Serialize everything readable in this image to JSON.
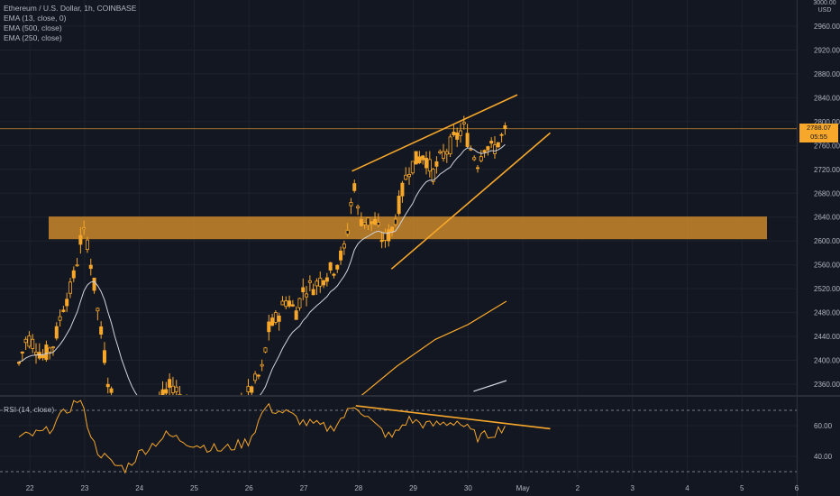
{
  "header": {
    "symbol_line": "Ethereum / U.S. Dollar, 1h, COINBASE",
    "indicators": [
      "EMA (13, close, 0)",
      "EMA (500, close)",
      "EMA (250, close)"
    ]
  },
  "axis": {
    "unit_top": "3000.00",
    "unit_label": "USD"
  },
  "last_price": {
    "value": "2788.07",
    "countdown": "05:55"
  },
  "rsi": {
    "label": "RSI (14, close)"
  },
  "colors": {
    "background": "#131722",
    "candle": "#f7a72a",
    "ema_fast": "#d1d4dc",
    "ema_500": "#f7a72a",
    "ema_250": "#d1d4dc",
    "zone": "#c9872a",
    "rsi_line": "#f7a72a",
    "grid": "#1e222d"
  },
  "chart_data": [
    {
      "type": "candlestick",
      "title": "Ethereum / U.S. Dollar, 1h, COINBASE",
      "x_ticks": [
        "22",
        "23",
        "24",
        "25",
        "26",
        "27",
        "28",
        "29",
        "30",
        "May",
        "2",
        "3",
        "4",
        "5",
        "6"
      ],
      "y_ticks": [
        2360,
        2400,
        2440,
        2480,
        2520,
        2560,
        2600,
        2640,
        2680,
        2720,
        2760,
        2800,
        2840,
        2880,
        2920,
        2960
      ],
      "ylim": [
        2340,
        3000
      ],
      "grid": true,
      "last_price": 2788.07,
      "resistance_zone": [
        2603,
        2641
      ],
      "channel_upper": [
        {
          "x": 27.88,
          "y": 2717
        },
        {
          "x": 30.9,
          "y": 2845
        }
      ],
      "channel_lower": [
        {
          "x": 28.6,
          "y": 2553
        },
        {
          "x": 31.5,
          "y": 2781
        }
      ],
      "ema_500": [
        {
          "x": 28.0,
          "y": 2337
        },
        {
          "x": 28.7,
          "y": 2390
        },
        {
          "x": 29.4,
          "y": 2435
        },
        {
          "x": 30.0,
          "y": 2460
        },
        {
          "x": 30.7,
          "y": 2499
        }
      ],
      "ema_250": [
        {
          "x": 30.1,
          "y": 2348
        },
        {
          "x": 30.7,
          "y": 2366
        }
      ],
      "price_path": [
        {
          "x": 21.8,
          "y": 2395
        },
        {
          "x": 21.95,
          "y": 2440
        },
        {
          "x": 22.1,
          "y": 2425
        },
        {
          "x": 22.25,
          "y": 2405
        },
        {
          "x": 22.45,
          "y": 2430
        },
        {
          "x": 22.6,
          "y": 2490
        },
        {
          "x": 22.75,
          "y": 2520
        },
        {
          "x": 22.85,
          "y": 2560
        },
        {
          "x": 22.95,
          "y": 2615
        },
        {
          "x": 23.05,
          "y": 2600
        },
        {
          "x": 23.15,
          "y": 2540
        },
        {
          "x": 23.3,
          "y": 2445
        },
        {
          "x": 23.45,
          "y": 2355
        },
        {
          "x": 23.6,
          "y": 2300
        },
        {
          "x": 24.0,
          "y": 2280
        },
        {
          "x": 24.3,
          "y": 2320
        },
        {
          "x": 24.6,
          "y": 2360
        },
        {
          "x": 25.0,
          "y": 2310
        },
        {
          "x": 25.6,
          "y": 2300
        },
        {
          "x": 26.0,
          "y": 2345
        },
        {
          "x": 26.25,
          "y": 2385
        },
        {
          "x": 26.35,
          "y": 2450
        },
        {
          "x": 26.5,
          "y": 2470
        },
        {
          "x": 26.7,
          "y": 2505
        },
        {
          "x": 26.85,
          "y": 2480
        },
        {
          "x": 27.0,
          "y": 2520
        },
        {
          "x": 27.2,
          "y": 2525
        },
        {
          "x": 27.35,
          "y": 2540
        },
        {
          "x": 27.55,
          "y": 2555
        },
        {
          "x": 27.75,
          "y": 2585
        },
        {
          "x": 27.92,
          "y": 2700
        },
        {
          "x": 28.0,
          "y": 2640
        },
        {
          "x": 28.15,
          "y": 2632
        },
        {
          "x": 28.3,
          "y": 2630
        },
        {
          "x": 28.45,
          "y": 2600
        },
        {
          "x": 28.6,
          "y": 2615
        },
        {
          "x": 28.75,
          "y": 2665
        },
        {
          "x": 28.9,
          "y": 2720
        },
        {
          "x": 29.05,
          "y": 2735
        },
        {
          "x": 29.2,
          "y": 2745
        },
        {
          "x": 29.35,
          "y": 2712
        },
        {
          "x": 29.5,
          "y": 2738
        },
        {
          "x": 29.65,
          "y": 2758
        },
        {
          "x": 29.8,
          "y": 2775
        },
        {
          "x": 29.92,
          "y": 2790
        },
        {
          "x": 30.05,
          "y": 2755
        },
        {
          "x": 30.18,
          "y": 2732
        },
        {
          "x": 30.3,
          "y": 2762
        },
        {
          "x": 30.45,
          "y": 2752
        },
        {
          "x": 30.6,
          "y": 2772
        },
        {
          "x": 30.72,
          "y": 2788
        }
      ],
      "candle_step_days": 0.0625,
      "candle_x_range": [
        21.8,
        30.72
      ]
    },
    {
      "type": "line",
      "title": "RSI (14, close)",
      "ylim": [
        32,
        80
      ],
      "y_ticks": [
        40,
        60
      ],
      "bands": [
        30,
        70
      ],
      "divergence_line": [
        {
          "x": 27.95,
          "y": 73
        },
        {
          "x": 31.5,
          "y": 58
        }
      ],
      "rsi_path": [
        {
          "x": 21.8,
          "y": 52
        },
        {
          "x": 22.3,
          "y": 56
        },
        {
          "x": 22.9,
          "y": 78
        },
        {
          "x": 23.2,
          "y": 45
        },
        {
          "x": 23.5,
          "y": 35
        },
        {
          "x": 23.75,
          "y": 32
        },
        {
          "x": 24.0,
          "y": 42
        },
        {
          "x": 24.5,
          "y": 54
        },
        {
          "x": 25.0,
          "y": 48
        },
        {
          "x": 25.5,
          "y": 44
        },
        {
          "x": 26.0,
          "y": 50
        },
        {
          "x": 26.3,
          "y": 72
        },
        {
          "x": 26.7,
          "y": 68
        },
        {
          "x": 27.0,
          "y": 62
        },
        {
          "x": 27.5,
          "y": 58
        },
        {
          "x": 27.95,
          "y": 74
        },
        {
          "x": 28.3,
          "y": 60
        },
        {
          "x": 28.6,
          "y": 52
        },
        {
          "x": 28.9,
          "y": 64
        },
        {
          "x": 29.3,
          "y": 60
        },
        {
          "x": 29.8,
          "y": 63
        },
        {
          "x": 30.2,
          "y": 52
        },
        {
          "x": 30.5,
          "y": 56
        },
        {
          "x": 30.72,
          "y": 61
        }
      ]
    }
  ]
}
